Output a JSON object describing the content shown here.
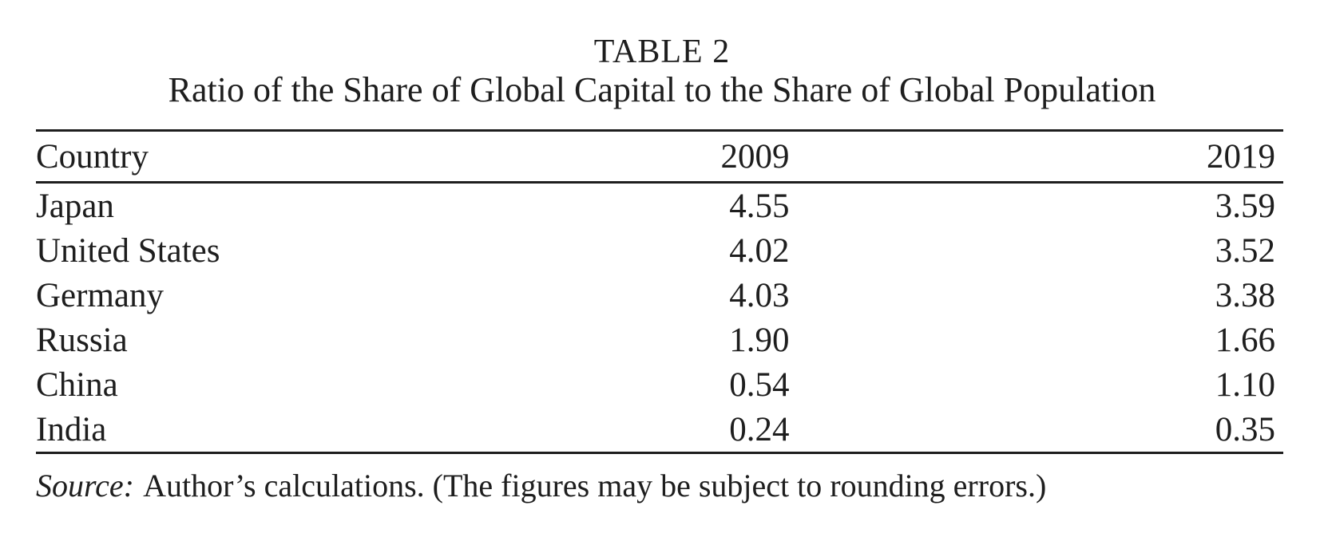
{
  "page": {
    "background_color": "#ffffff",
    "text_color": "#1e1e1e",
    "rule_color": "#1e1e1e"
  },
  "table": {
    "label": "TABLE 2",
    "title": "Ratio of the Share of Global Capital to the Share of Global Population",
    "columns": {
      "country": "Country",
      "y2009": "2009",
      "y2019": "2019"
    },
    "rows": [
      {
        "country": "Japan",
        "y2009": "4.55",
        "y2019": "3.59"
      },
      {
        "country": "United States",
        "y2009": "4.02",
        "y2019": "3.52"
      },
      {
        "country": "Germany",
        "y2009": "4.03",
        "y2019": "3.38"
      },
      {
        "country": "Russia",
        "y2009": "1.90",
        "y2019": "1.66"
      },
      {
        "country": "China",
        "y2009": "0.54",
        "y2019": "1.10"
      },
      {
        "country": "India",
        "y2009": "0.24",
        "y2019": "0.35"
      }
    ],
    "source_label": "Source:",
    "source_text": "Author’s calculations. (The figures may be subject to rounding errors.)"
  },
  "chart_data": {
    "type": "table",
    "title": "TABLE 2 — Ratio of the Share of Global Capital to the Share of Global Population",
    "columns": [
      "Country",
      "2009",
      "2019"
    ],
    "rows": [
      [
        "Japan",
        4.55,
        3.59
      ],
      [
        "United States",
        4.02,
        3.52
      ],
      [
        "Germany",
        4.03,
        3.38
      ],
      [
        "Russia",
        1.9,
        1.66
      ],
      [
        "China",
        0.54,
        1.1
      ],
      [
        "India",
        0.24,
        0.35
      ]
    ],
    "note": "Source: Author’s calculations. (The figures may be subject to rounding errors.)"
  }
}
